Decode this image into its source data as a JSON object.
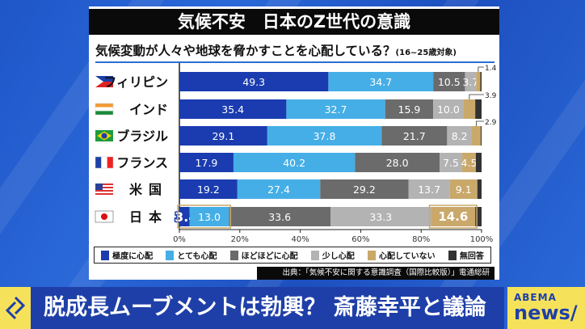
{
  "title": "気候不安　日本のZ世代の意識",
  "subtitle": "気候変動が人々や地球を脅かすことを心配している？",
  "subtitle_note": "(16~25歳対象)",
  "source": "出典：「気候不安に関する意識調査（国際比較版）」電通総研",
  "banner": {
    "icon": "refresh-cycle-icon",
    "text": "脱成長ムーブメントは勃興？ 斎藤幸平と議論",
    "logo_top": "ABEMA",
    "logo_bottom": "news/"
  },
  "chart_data": {
    "type": "bar",
    "orientation": "horizontal",
    "stacked": true,
    "categories": [
      "フィリピン",
      "インド",
      "ブラジル",
      "フランス",
      "米国",
      "日本"
    ],
    "flags": [
      "philippines",
      "india",
      "brazil",
      "france",
      "usa",
      "japan"
    ],
    "series": [
      {
        "name": "極度に心配",
        "color": "#1a3cb0",
        "values": [
          49.3,
          35.4,
          29.1,
          17.9,
          19.2,
          3.4
        ]
      },
      {
        "name": "とても心配",
        "color": "#45aee6",
        "values": [
          34.7,
          32.7,
          37.8,
          40.2,
          27.4,
          13.0
        ]
      },
      {
        "name": "ほどほどに心配",
        "color": "#6b6b6b",
        "values": [
          10.5,
          15.9,
          21.7,
          28.0,
          29.2,
          33.6
        ]
      },
      {
        "name": "少し心配",
        "color": "#b3b3b3",
        "values": [
          3.7,
          10.0,
          8.2,
          7.5,
          13.7,
          33.3
        ]
      },
      {
        "name": "心配していない",
        "color": "#c9a86a",
        "values": [
          1.4,
          3.9,
          2.9,
          4.5,
          9.1,
          14.6
        ]
      },
      {
        "name": "無回答",
        "color": "#333333",
        "values": [
          0.4,
          2.1,
          0.3,
          1.9,
          1.4,
          2.1
        ]
      }
    ],
    "data_labels": [
      [
        "49.3",
        "34.7",
        "10.5",
        "3.7",
        "1.4",
        ""
      ],
      [
        "35.4",
        "32.7",
        "15.9",
        "10.0",
        "3.9",
        ""
      ],
      [
        "29.1",
        "37.8",
        "21.7",
        "8.2",
        "2.9",
        ""
      ],
      [
        "17.9",
        "40.2",
        "28.0",
        "7.5",
        "4.5",
        ""
      ],
      [
        "19.2",
        "27.4",
        "29.2",
        "13.7",
        "9.1",
        ""
      ],
      [
        "3.4",
        "13.0",
        "33.6",
        "33.3",
        "14.6",
        ""
      ]
    ],
    "xlim": [
      0,
      100
    ],
    "xticks": [
      "0%",
      "20%",
      "40%",
      "60%",
      "80%",
      "100%"
    ],
    "highlight_row": "日本",
    "legend_position": "bottom"
  }
}
